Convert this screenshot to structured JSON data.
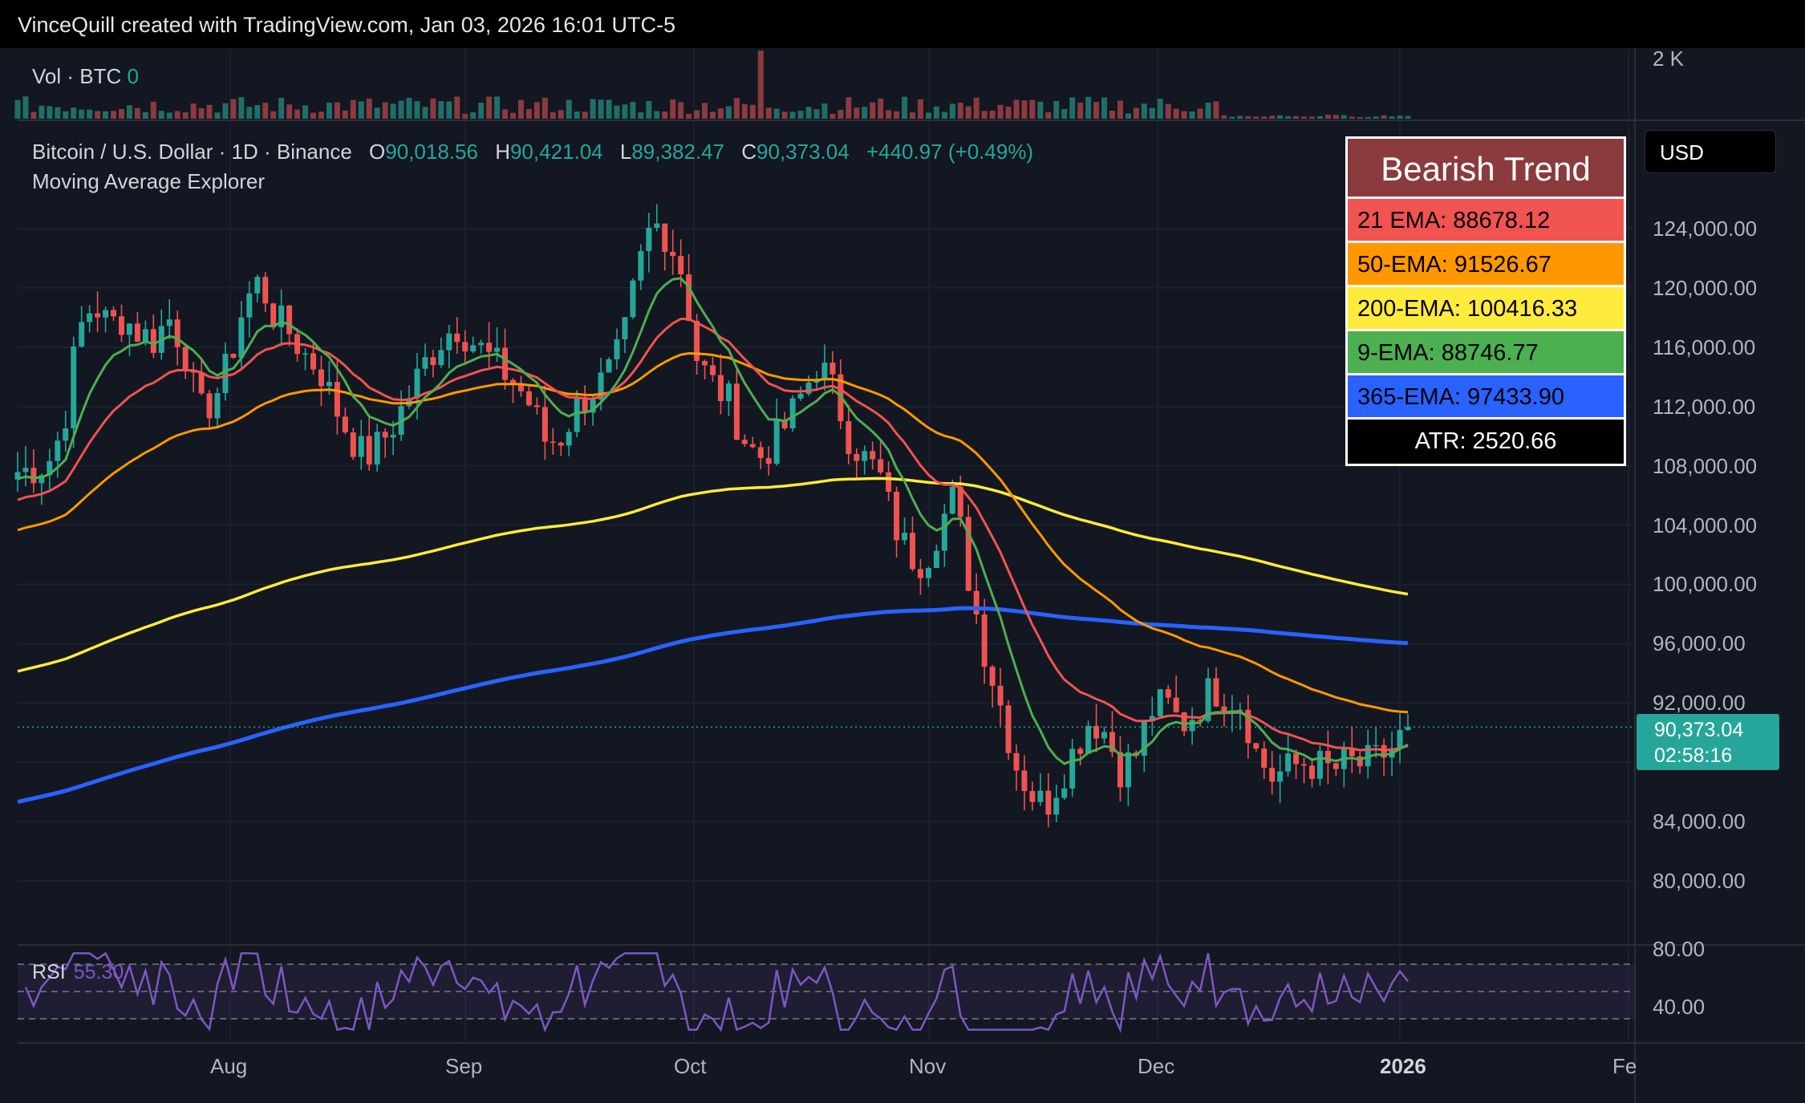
{
  "header": {
    "text": "VinceQuill created with TradingView.com, Jan 03, 2026 16:01 UTC-5"
  },
  "volume": {
    "label": "Vol · BTC",
    "value": "0",
    "axis_label": "2 K"
  },
  "symbol": {
    "name": "Bitcoin / U.S. Dollar · 1D · Binance",
    "o_key": "O",
    "o": "90,018.56",
    "h_key": "H",
    "h": "90,421.04",
    "l_key": "L",
    "l": "89,382.47",
    "c_key": "C",
    "c": "90,373.04",
    "change": "+440.97 (+0.49%)"
  },
  "indicator": {
    "name": "Moving Average Explorer"
  },
  "currency": "USD",
  "price_axis": [
    "124,000.00",
    "120,000.00",
    "116,000.00",
    "112,000.00",
    "108,000.00",
    "104,000.00",
    "100,000.00",
    "96,000.00",
    "92,000.00",
    "84,000.00",
    "80,000.00"
  ],
  "last_price": {
    "price": "90,373.04",
    "countdown": "02:58:16"
  },
  "time_axis": [
    "Aug",
    "Sep",
    "Oct",
    "Nov",
    "Dec",
    "2026",
    "Fe"
  ],
  "rsi": {
    "label": "RSI",
    "value": "55.30",
    "axis": [
      "80.00",
      "40.00"
    ]
  },
  "trend_table": {
    "title": "Bearish Trend",
    "rows": [
      {
        "label": "21 EMA: 88678.12",
        "color": "#f05350"
      },
      {
        "label": "50-EMA: 91526.67",
        "color": "#ff9800"
      },
      {
        "label": "200-EMA: 100416.33",
        "color": "#ffeb3b"
      },
      {
        "label": "9-EMA: 88746.77",
        "color": "#4caf50"
      },
      {
        "label": "365-EMA: 97433.90",
        "color": "#2962ff"
      }
    ],
    "atr": "ATR: 2520.66"
  },
  "colors": {
    "up": "#26a69a",
    "down": "#ef5350",
    "ema9": "#4caf50",
    "ema21": "#f05350",
    "ema50": "#ff9800",
    "ema200": "#ffeb3b",
    "ema365": "#2962ff",
    "rsi": "#7e57c2"
  },
  "price_points": [
    [
      0,
      107600
    ],
    [
      8,
      107800
    ],
    [
      16,
      108200
    ],
    [
      24,
      110500
    ],
    [
      32,
      117000
    ],
    [
      40,
      119000
    ],
    [
      48,
      117500
    ],
    [
      56,
      118000
    ],
    [
      64,
      117000
    ],
    [
      72,
      116500
    ],
    [
      80,
      118000
    ],
    [
      88,
      116000
    ],
    [
      96,
      111500
    ],
    [
      104,
      112500
    ],
    [
      112,
      115000
    ],
    [
      120,
      119000
    ],
    [
      128,
      120500
    ],
    [
      136,
      118000
    ],
    [
      144,
      117000
    ],
    [
      152,
      115500
    ],
    [
      160,
      114500
    ],
    [
      168,
      112000
    ],
    [
      176,
      110000
    ],
    [
      184,
      108500
    ],
    [
      192,
      109500
    ],
    [
      200,
      111000
    ],
    [
      208,
      113000
    ],
    [
      216,
      115000
    ],
    [
      224,
      116500
    ],
    [
      232,
      117500
    ],
    [
      240,
      116500
    ],
    [
      248,
      115500
    ],
    [
      256,
      114500
    ],
    [
      264,
      113500
    ],
    [
      272,
      112000
    ],
    [
      280,
      109500
    ],
    [
      288,
      110000
    ],
    [
      296,
      112000
    ],
    [
      304,
      113000
    ],
    [
      312,
      114000
    ],
    [
      320,
      116000
    ],
    [
      328,
      121000
    ],
    [
      336,
      124500
    ],
    [
      344,
      123500
    ],
    [
      352,
      121000
    ],
    [
      360,
      115000
    ],
    [
      368,
      113500
    ],
    [
      376,
      112500
    ],
    [
      384,
      110000
    ],
    [
      392,
      108500
    ],
    [
      400,
      109500
    ],
    [
      408,
      111000
    ],
    [
      416,
      113000
    ],
    [
      424,
      115000
    ],
    [
      432,
      113000
    ],
    [
      440,
      110000
    ],
    [
      448,
      108500
    ],
    [
      456,
      107500
    ],
    [
      464,
      104000
    ],
    [
      472,
      102000
    ],
    [
      480,
      101500
    ],
    [
      488,
      104000
    ],
    [
      496,
      106000
    ],
    [
      504,
      100000
    ],
    [
      512,
      95500
    ],
    [
      520,
      92000
    ],
    [
      528,
      88000
    ],
    [
      536,
      86000
    ],
    [
      544,
      85000
    ],
    [
      552,
      87000
    ],
    [
      560,
      89000
    ],
    [
      568,
      91000
    ],
    [
      576,
      90000
    ],
    [
      584,
      87500
    ],
    [
      592,
      88500
    ],
    [
      600,
      91500
    ],
    [
      608,
      92000
    ],
    [
      616,
      90500
    ],
    [
      624,
      91500
    ],
    [
      632,
      93000
    ],
    [
      640,
      92500
    ],
    [
      648,
      92000
    ],
    [
      656,
      88500
    ],
    [
      664,
      87000
    ],
    [
      672,
      87500
    ],
    [
      680,
      88000
    ],
    [
      688,
      87800
    ],
    [
      696,
      87400
    ],
    [
      704,
      88000
    ],
    [
      712,
      87800
    ],
    [
      720,
      88200
    ],
    [
      728,
      89000
    ],
    [
      736,
      90373
    ]
  ]
}
